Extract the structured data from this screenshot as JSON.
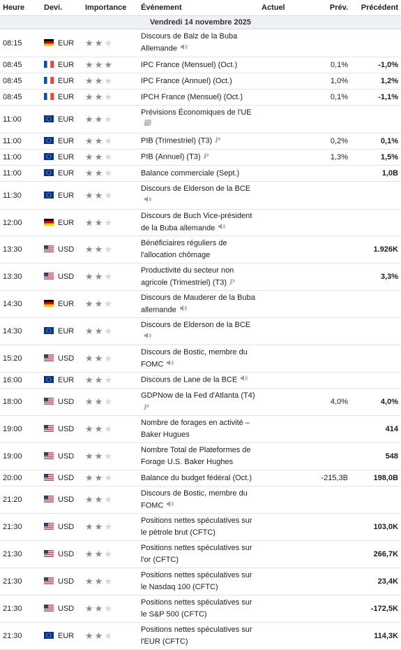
{
  "headers": {
    "time": "Heure",
    "currency": "Devi.",
    "importance": "Importance",
    "event": "Événement",
    "actual": "Actuel",
    "forecast": "Prév.",
    "previous": "Précédent"
  },
  "date_label": "Vendredi 14 novembre 2025",
  "rows": [
    {
      "time": "08:15",
      "flag": "de",
      "currency": "EUR",
      "stars": 2,
      "event": "Discours de Balz de la Buba Allemande",
      "icon": "speaker-icon",
      "actual": "",
      "forecast": "",
      "previous": "",
      "h": 40
    },
    {
      "time": "08:45",
      "flag": "fr",
      "currency": "EUR",
      "stars": 3,
      "event": "IPC France (Mensuel) (Oct.)",
      "icon": "",
      "actual": "",
      "forecast": "0,1%",
      "previous": "-1,0%",
      "h": 23
    },
    {
      "time": "08:45",
      "flag": "fr",
      "currency": "EUR",
      "stars": 2,
      "event": "IPC France (Annuel) (Oct.)",
      "icon": "",
      "actual": "",
      "forecast": "1,0%",
      "previous": "1,2%",
      "h": 23
    },
    {
      "time": "08:45",
      "flag": "fr",
      "currency": "EUR",
      "stars": 2,
      "event": "IPCH France (Mensuel) (Oct.)",
      "icon": "",
      "actual": "",
      "forecast": "0,1%",
      "previous": "-1,1%",
      "h": 23
    },
    {
      "time": "11:00",
      "flag": "eu",
      "currency": "EUR",
      "stars": 2,
      "event": "Prévisions Économiques de l'UE",
      "icon": "report-icon",
      "actual": "",
      "forecast": "",
      "previous": "",
      "h": 40
    },
    {
      "time": "11:00",
      "flag": "eu",
      "currency": "EUR",
      "stars": 2,
      "event": "PIB (Trimestriel) (T3)",
      "icon": "preliminary-icon",
      "actual": "",
      "forecast": "0,2%",
      "previous": "0,1%",
      "h": 23
    },
    {
      "time": "11:00",
      "flag": "eu",
      "currency": "EUR",
      "stars": 2,
      "event": "PIB (Annuel) (T3)",
      "icon": "preliminary-icon",
      "actual": "",
      "forecast": "1,3%",
      "previous": "1,5%",
      "h": 23
    },
    {
      "time": "11:00",
      "flag": "eu",
      "currency": "EUR",
      "stars": 2,
      "event": "Balance commerciale (Sept.)",
      "icon": "",
      "actual": "",
      "forecast": "",
      "previous": "1,0B",
      "h": 23
    },
    {
      "time": "11:30",
      "flag": "eu",
      "currency": "EUR",
      "stars": 2,
      "event": "Discours de Elderson de la BCE",
      "icon": "speaker-icon",
      "actual": "",
      "forecast": "",
      "previous": "",
      "h": 40
    },
    {
      "time": "12:00",
      "flag": "de",
      "currency": "EUR",
      "stars": 2,
      "event": "Discours de Buch Vice-président de la Buba allemande",
      "icon": "speaker-icon",
      "actual": "",
      "forecast": "",
      "previous": "",
      "h": 38
    },
    {
      "time": "13:30",
      "flag": "us",
      "currency": "USD",
      "stars": 2,
      "event": "Bénéficiaires réguliers de l'allocation chômage",
      "icon": "",
      "actual": "",
      "forecast": "",
      "previous": "1.926K",
      "h": 39
    },
    {
      "time": "13:30",
      "flag": "us",
      "currency": "USD",
      "stars": 2,
      "event": "Productivité du secteur non agricole (Trimestriel) (T3)",
      "icon": "preliminary-icon",
      "actual": "",
      "forecast": "",
      "previous": "3,3%",
      "h": 39
    },
    {
      "time": "14:30",
      "flag": "de",
      "currency": "EUR",
      "stars": 2,
      "event": "Discours de Mauderer de la Buba allemande",
      "icon": "speaker-icon",
      "actual": "",
      "forecast": "",
      "previous": "",
      "h": 39
    },
    {
      "time": "14:30",
      "flag": "eu",
      "currency": "EUR",
      "stars": 2,
      "event": "Discours de Elderson de la BCE",
      "icon": "speaker-icon",
      "actual": "",
      "forecast": "",
      "previous": "",
      "h": 39
    },
    {
      "time": "15:20",
      "flag": "us",
      "currency": "USD",
      "stars": 2,
      "event": "Discours de Bostic, membre du FOMC",
      "icon": "speaker-icon",
      "actual": "",
      "forecast": "",
      "previous": "",
      "h": 39
    },
    {
      "time": "16:00",
      "flag": "eu",
      "currency": "EUR",
      "stars": 2,
      "event": "Discours de Lane de la BCE",
      "icon": "speaker-icon",
      "actual": "",
      "forecast": "",
      "previous": "",
      "h": 23
    },
    {
      "time": "18:00",
      "flag": "us",
      "currency": "USD",
      "stars": 2,
      "event": "GDPNow de la Fed d'Atlanta (T4)",
      "icon": "preliminary-icon",
      "actual": "",
      "forecast": "4,0%",
      "previous": "4,0%",
      "h": 39
    },
    {
      "time": "19:00",
      "flag": "us",
      "currency": "USD",
      "stars": 2,
      "event": "Nombre de forages en activité – Baker Hugues",
      "icon": "",
      "actual": "",
      "forecast": "",
      "previous": "414",
      "h": 39
    },
    {
      "time": "19:00",
      "flag": "us",
      "currency": "USD",
      "stars": 2,
      "event": "Nombre Total de Plateformes de Forage U.S. Baker Hughes",
      "icon": "",
      "actual": "",
      "forecast": "",
      "previous": "548",
      "h": 39
    },
    {
      "time": "20:00",
      "flag": "us",
      "currency": "USD",
      "stars": 2,
      "event": "Balance du budget fédéral (Oct.)",
      "icon": "",
      "actual": "",
      "forecast": "-215,3B",
      "previous": "198,0B",
      "h": 23
    },
    {
      "time": "21:20",
      "flag": "us",
      "currency": "USD",
      "stars": 2,
      "event": "Discours de Bostic, membre du FOMC",
      "icon": "speaker-icon",
      "actual": "",
      "forecast": "",
      "previous": "",
      "h": 39
    },
    {
      "time": "21:30",
      "flag": "us",
      "currency": "USD",
      "stars": 2,
      "event": "Positions nettes spéculatives sur le pétrole brut (CFTC)",
      "icon": "",
      "actual": "",
      "forecast": "",
      "previous": "103,0K",
      "h": 39
    },
    {
      "time": "21:30",
      "flag": "us",
      "currency": "USD",
      "stars": 2,
      "event": "Positions nettes spéculatives sur l'or (CFTC)",
      "icon": "",
      "actual": "",
      "forecast": "",
      "previous": "266,7K",
      "h": 39
    },
    {
      "time": "21:30",
      "flag": "us",
      "currency": "USD",
      "stars": 2,
      "event": "Positions nettes spéculatives sur le Nasdaq 100 (CFTC)",
      "icon": "",
      "actual": "",
      "forecast": "",
      "previous": "23,4K",
      "h": 39
    },
    {
      "time": "21:30",
      "flag": "us",
      "currency": "USD",
      "stars": 2,
      "event": "Positions nettes spéculatives sur le S&P 500 (CFTC)",
      "icon": "",
      "actual": "",
      "forecast": "",
      "previous": "-172,5K",
      "h": 39
    },
    {
      "time": "21:30",
      "flag": "eu",
      "currency": "EUR",
      "stars": 2,
      "event": "Positions nettes spéculatives sur l'EUR (CFTC)",
      "icon": "",
      "actual": "",
      "forecast": "",
      "previous": "114,3K",
      "h": 39
    }
  ]
}
